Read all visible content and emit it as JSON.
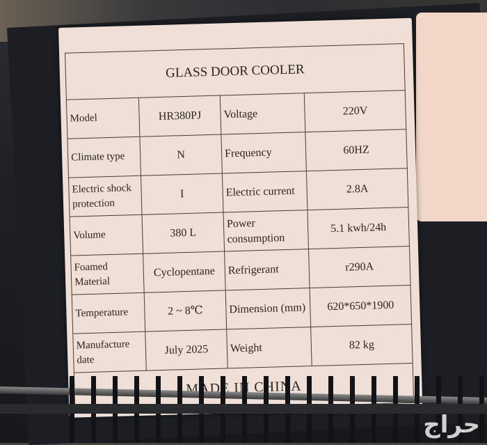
{
  "label": {
    "title": "GLASS DOOR COOLER",
    "rows": [
      {
        "k1": "Model",
        "v1": "HR380PJ",
        "k2": "Voltage",
        "v2": "220V"
      },
      {
        "k1": "Climate type",
        "v1": "N",
        "k2": "Frequency",
        "v2": "60HZ"
      },
      {
        "k1": "Electric shock protection",
        "v1": "I",
        "k2": "Electric current",
        "v2": "2.8A"
      },
      {
        "k1": "Volume",
        "v1": "380 L",
        "k2": "Power consumption",
        "v2": "5.1 kwh/24h"
      },
      {
        "k1": "Foamed Material",
        "v1": "Cyclopentane",
        "k2": "Refrigerant",
        "v2": "r290A"
      },
      {
        "k1": "Temperature",
        "v1": "2 ~ 8℃",
        "k2": "Dimension (mm)",
        "v2": "620*650*1900"
      },
      {
        "k1": "Manufacture date",
        "v1": "July 2025",
        "k2": "Weight",
        "v2": "82 kg"
      }
    ],
    "footer": "MADE IN CHINA"
  },
  "watermark": "حراج"
}
